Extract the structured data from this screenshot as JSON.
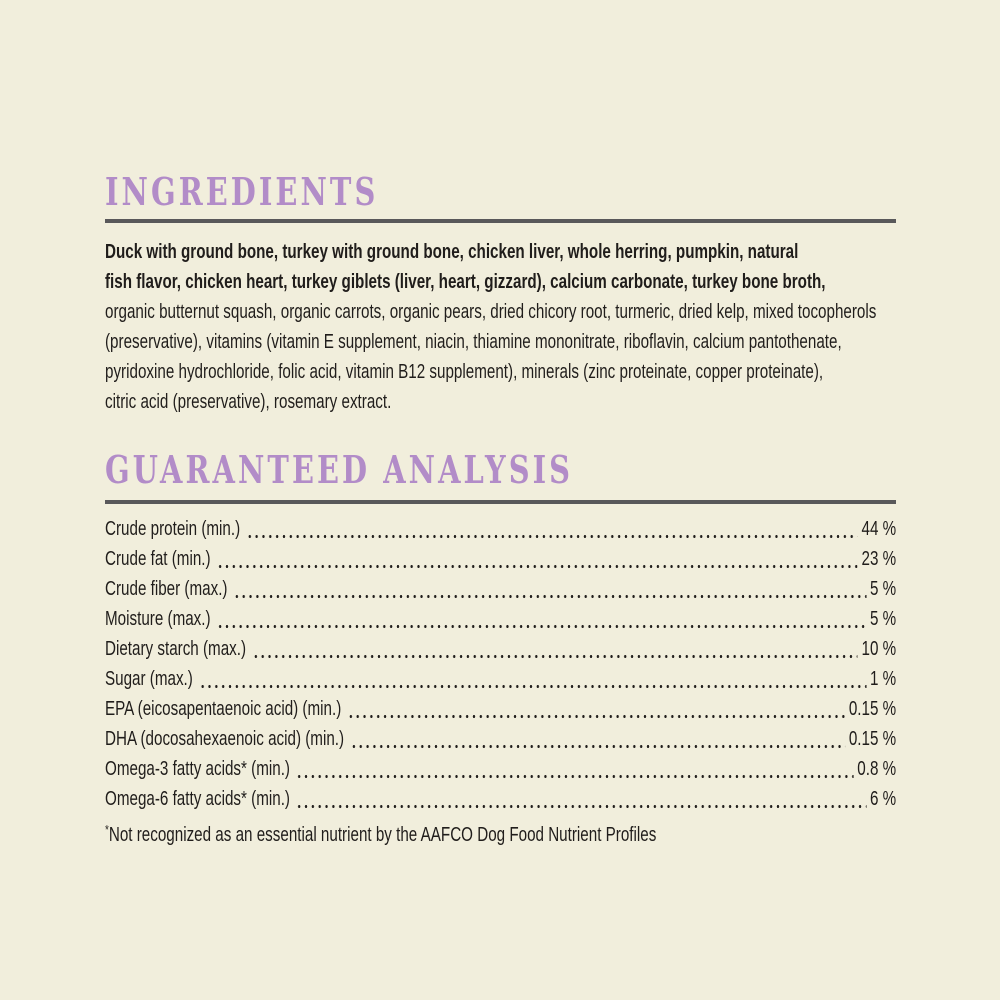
{
  "theme": {
    "background": "#f1eedc",
    "accent": "#b28cc8",
    "rule": "#59585a",
    "text": "#201d1b"
  },
  "ingredients": {
    "heading": "INGREDIENTS",
    "bold_lines": [
      "Duck with ground bone, turkey with ground bone, chicken liver, whole herring, pumpkin, natural",
      "fish flavor, chicken heart, turkey giblets (liver, heart, gizzard), calcium carbonate, turkey bone broth,"
    ],
    "lines": [
      "organic butternut squash, organic carrots, organic pears, dried chicory root, turmeric, dried kelp, mixed tocopherols",
      "(preservative), vitamins (vitamin E supplement, niacin, thiamine mononitrate, riboflavin, calcium pantothenate,",
      "pyridoxine hydrochloride, folic acid, vitamin B12 supplement), minerals (zinc proteinate, copper proteinate),",
      "citric acid (preservative), rosemary extract."
    ]
  },
  "analysis": {
    "heading": "GUARANTEED ANALYSIS",
    "rows": [
      {
        "label": "Crude protein (min.)",
        "value": "44 %"
      },
      {
        "label": "Crude fat (min.)",
        "value": "23 %"
      },
      {
        "label": "Crude fiber (max.)",
        "value": "5 %"
      },
      {
        "label": "Moisture (max.)",
        "value": "5 %"
      },
      {
        "label": "Dietary starch (max.)",
        "value": "10 %"
      },
      {
        "label": "Sugar (max.)",
        "value": "1 %"
      },
      {
        "label": "EPA (eicosapentaenoic acid) (min.)",
        "value": "0.15 %"
      },
      {
        "label": "DHA (docosahexaenoic acid) (min.)",
        "value": "0.15 %"
      },
      {
        "label": "Omega-3 fatty acids* (min.)",
        "value": "0.8 %"
      },
      {
        "label": "Omega-6 fatty acids* (min.)",
        "value": "6 %"
      }
    ],
    "footnote_marker": "*",
    "footnote": "Not recognized as an essential nutrient by the AAFCO Dog Food Nutrient Profiles"
  }
}
